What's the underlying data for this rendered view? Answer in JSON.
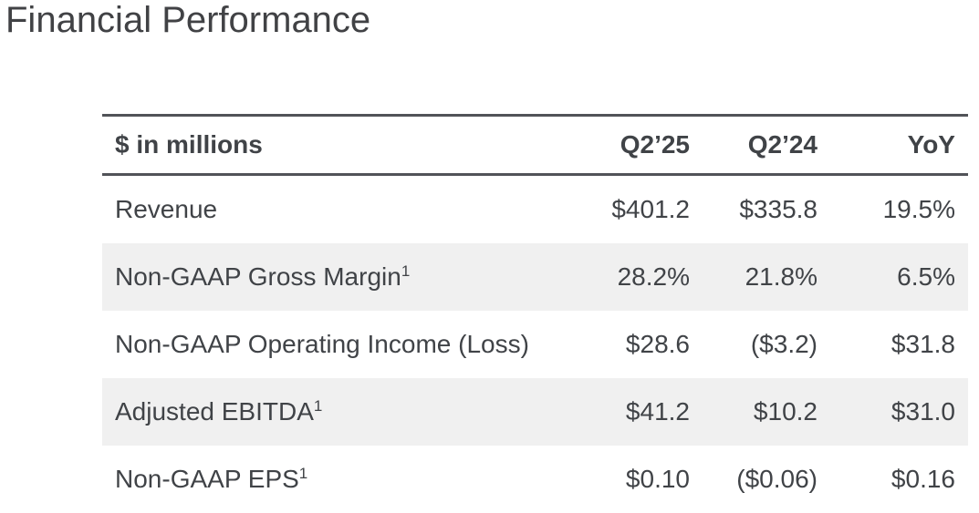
{
  "page": {
    "title": "Financial Performance"
  },
  "colors": {
    "text": "#404347",
    "title_text": "#414245",
    "rule_lines": "#515358",
    "row_stripe": "#f0f0f0",
    "background": "#ffffff"
  },
  "chart_data": {
    "type": "table",
    "title": "Financial Performance",
    "units_label": "$ in millions",
    "columns": [
      "Q2’25",
      "Q2’24",
      "YoY"
    ],
    "layout_hints": {
      "striped_rows": [
        1,
        3
      ],
      "numeric_columns_alignment": "right",
      "rules": [
        "top",
        "below-header",
        "bottom"
      ]
    },
    "rows": [
      {
        "metric": "Revenue",
        "footnote": "",
        "q2_25": "$401.2",
        "q2_24": "$335.8",
        "yoy": "19.5%"
      },
      {
        "metric": "Non-GAAP Gross Margin",
        "footnote": "1",
        "q2_25": "28.2%",
        "q2_24": "21.8%",
        "yoy": "6.5%"
      },
      {
        "metric": "Non-GAAP Operating Income (Loss)",
        "footnote": "",
        "q2_25": "$28.6",
        "q2_24": "($3.2)",
        "yoy": "$31.8"
      },
      {
        "metric": "Adjusted EBITDA",
        "footnote": "1",
        "q2_25": "$41.2",
        "q2_24": "$10.2",
        "yoy": "$31.0"
      },
      {
        "metric": "Non-GAAP EPS",
        "footnote": "1",
        "q2_25": "$0.10",
        "q2_24": "($0.06)",
        "yoy": "$0.16"
      }
    ]
  }
}
